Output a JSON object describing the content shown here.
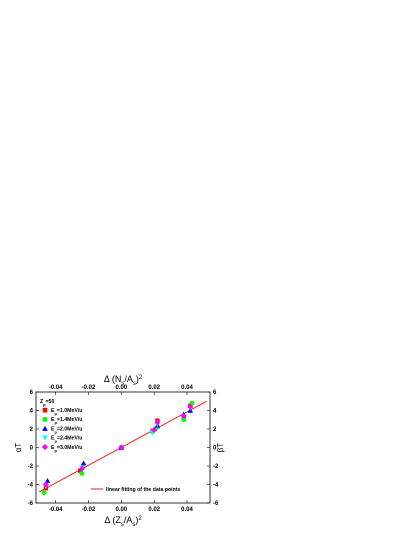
{
  "chart_data": {
    "type": "scatter",
    "title": "",
    "annotation": "Z",
    "annotation_sub": "p",
    "annotation_tail": "=50",
    "xlabel": {
      "prefix": "Δ",
      "open": "(",
      "main": "Z",
      "sub": "s",
      "slash": "/A",
      "sub2": "s",
      "close": ")",
      "sup": "2"
    },
    "x2label": {
      "prefix": "Δ",
      "open": "(",
      "main": "N",
      "sub": "s",
      "slash": "/A",
      "sub2": "s",
      "close": ")",
      "sup": "2"
    },
    "ylabel": "αT",
    "y2label": "βT",
    "xlim": [
      -0.052,
      0.054
    ],
    "ylim": [
      -6,
      6
    ],
    "x_ticks": [
      "-0.04",
      "-0.02",
      "0.00",
      "0.02",
      "0.04"
    ],
    "x_tick_values": [
      -0.04,
      -0.02,
      0.0,
      0.02,
      0.04
    ],
    "x2_ticks": [
      "-0.04",
      "-0.02",
      "0.00",
      "0.02",
      "0.04"
    ],
    "x2_tick_values": [
      -0.04,
      -0.02,
      0.0,
      0.02,
      0.04
    ],
    "y_ticks": [
      "-6",
      "-4",
      "-2",
      "0",
      "2",
      "4",
      "6"
    ],
    "y_tick_values": [
      -6,
      -4,
      -2,
      0,
      2,
      4,
      6
    ],
    "y2_ticks": [
      "-6",
      "-4",
      "-2",
      "0",
      "2",
      "4",
      "6"
    ],
    "y2_tick_values": [
      -6,
      -4,
      -2,
      0,
      2,
      4,
      6
    ],
    "legend_position": "top-left",
    "series": [
      {
        "label_main": "E",
        "label_sub": "p",
        "label_tail": "=1.0MeV/u",
        "marker": "square",
        "color": "#ff0000",
        "x": [
          -0.046,
          -0.025,
          0.0,
          0.019,
          0.022,
          0.038,
          0.042
        ],
        "y": [
          -4.4,
          -2.5,
          0.0,
          1.8,
          2.9,
          3.3,
          4.5
        ]
      },
      {
        "label_main": "E",
        "label_sub": "p",
        "label_tail": "=1.4MeV/u",
        "marker": "circle",
        "color": "#00ff00",
        "x": [
          -0.047,
          -0.024,
          0.0,
          0.019,
          0.022,
          0.038,
          0.043
        ],
        "y": [
          -4.9,
          -2.8,
          0.0,
          1.7,
          2.2,
          3.0,
          4.8
        ]
      },
      {
        "label_main": "E",
        "label_sub": "p",
        "label_tail": "=2.0MeV/u",
        "marker": "triangle-up",
        "color": "#0000ff",
        "x": [
          -0.045,
          -0.023,
          0.0,
          0.02,
          0.022,
          0.038,
          0.042
        ],
        "y": [
          -3.6,
          -1.7,
          0.0,
          2.0,
          2.4,
          3.6,
          4.0
        ]
      },
      {
        "label_main": "E",
        "label_sub": "p",
        "label_tail": "=2.4MeV/u",
        "marker": "triangle-down",
        "color": "#00ffff",
        "x": [
          -0.046,
          -0.024,
          0.0,
          0.019,
          0.022,
          0.038,
          0.042
        ],
        "y": [
          -4.2,
          -2.2,
          0.0,
          1.6,
          2.5,
          3.3,
          4.3
        ]
      },
      {
        "label_main": "E",
        "label_sub": "p",
        "label_tail": "=3.0MeV/u",
        "marker": "diamond",
        "color": "#ff00ff",
        "x": [
          -0.046,
          -0.024,
          0.0,
          0.02,
          0.022,
          0.038,
          0.042
        ],
        "y": [
          -4.0,
          -2.3,
          0.0,
          1.9,
          2.7,
          3.4,
          4.4
        ]
      }
    ],
    "fit_line": {
      "label": "linear fitting of the data points",
      "color": "#ff0000",
      "x": [
        -0.05,
        0.052
      ],
      "y": [
        -4.8,
        5.0
      ]
    }
  }
}
